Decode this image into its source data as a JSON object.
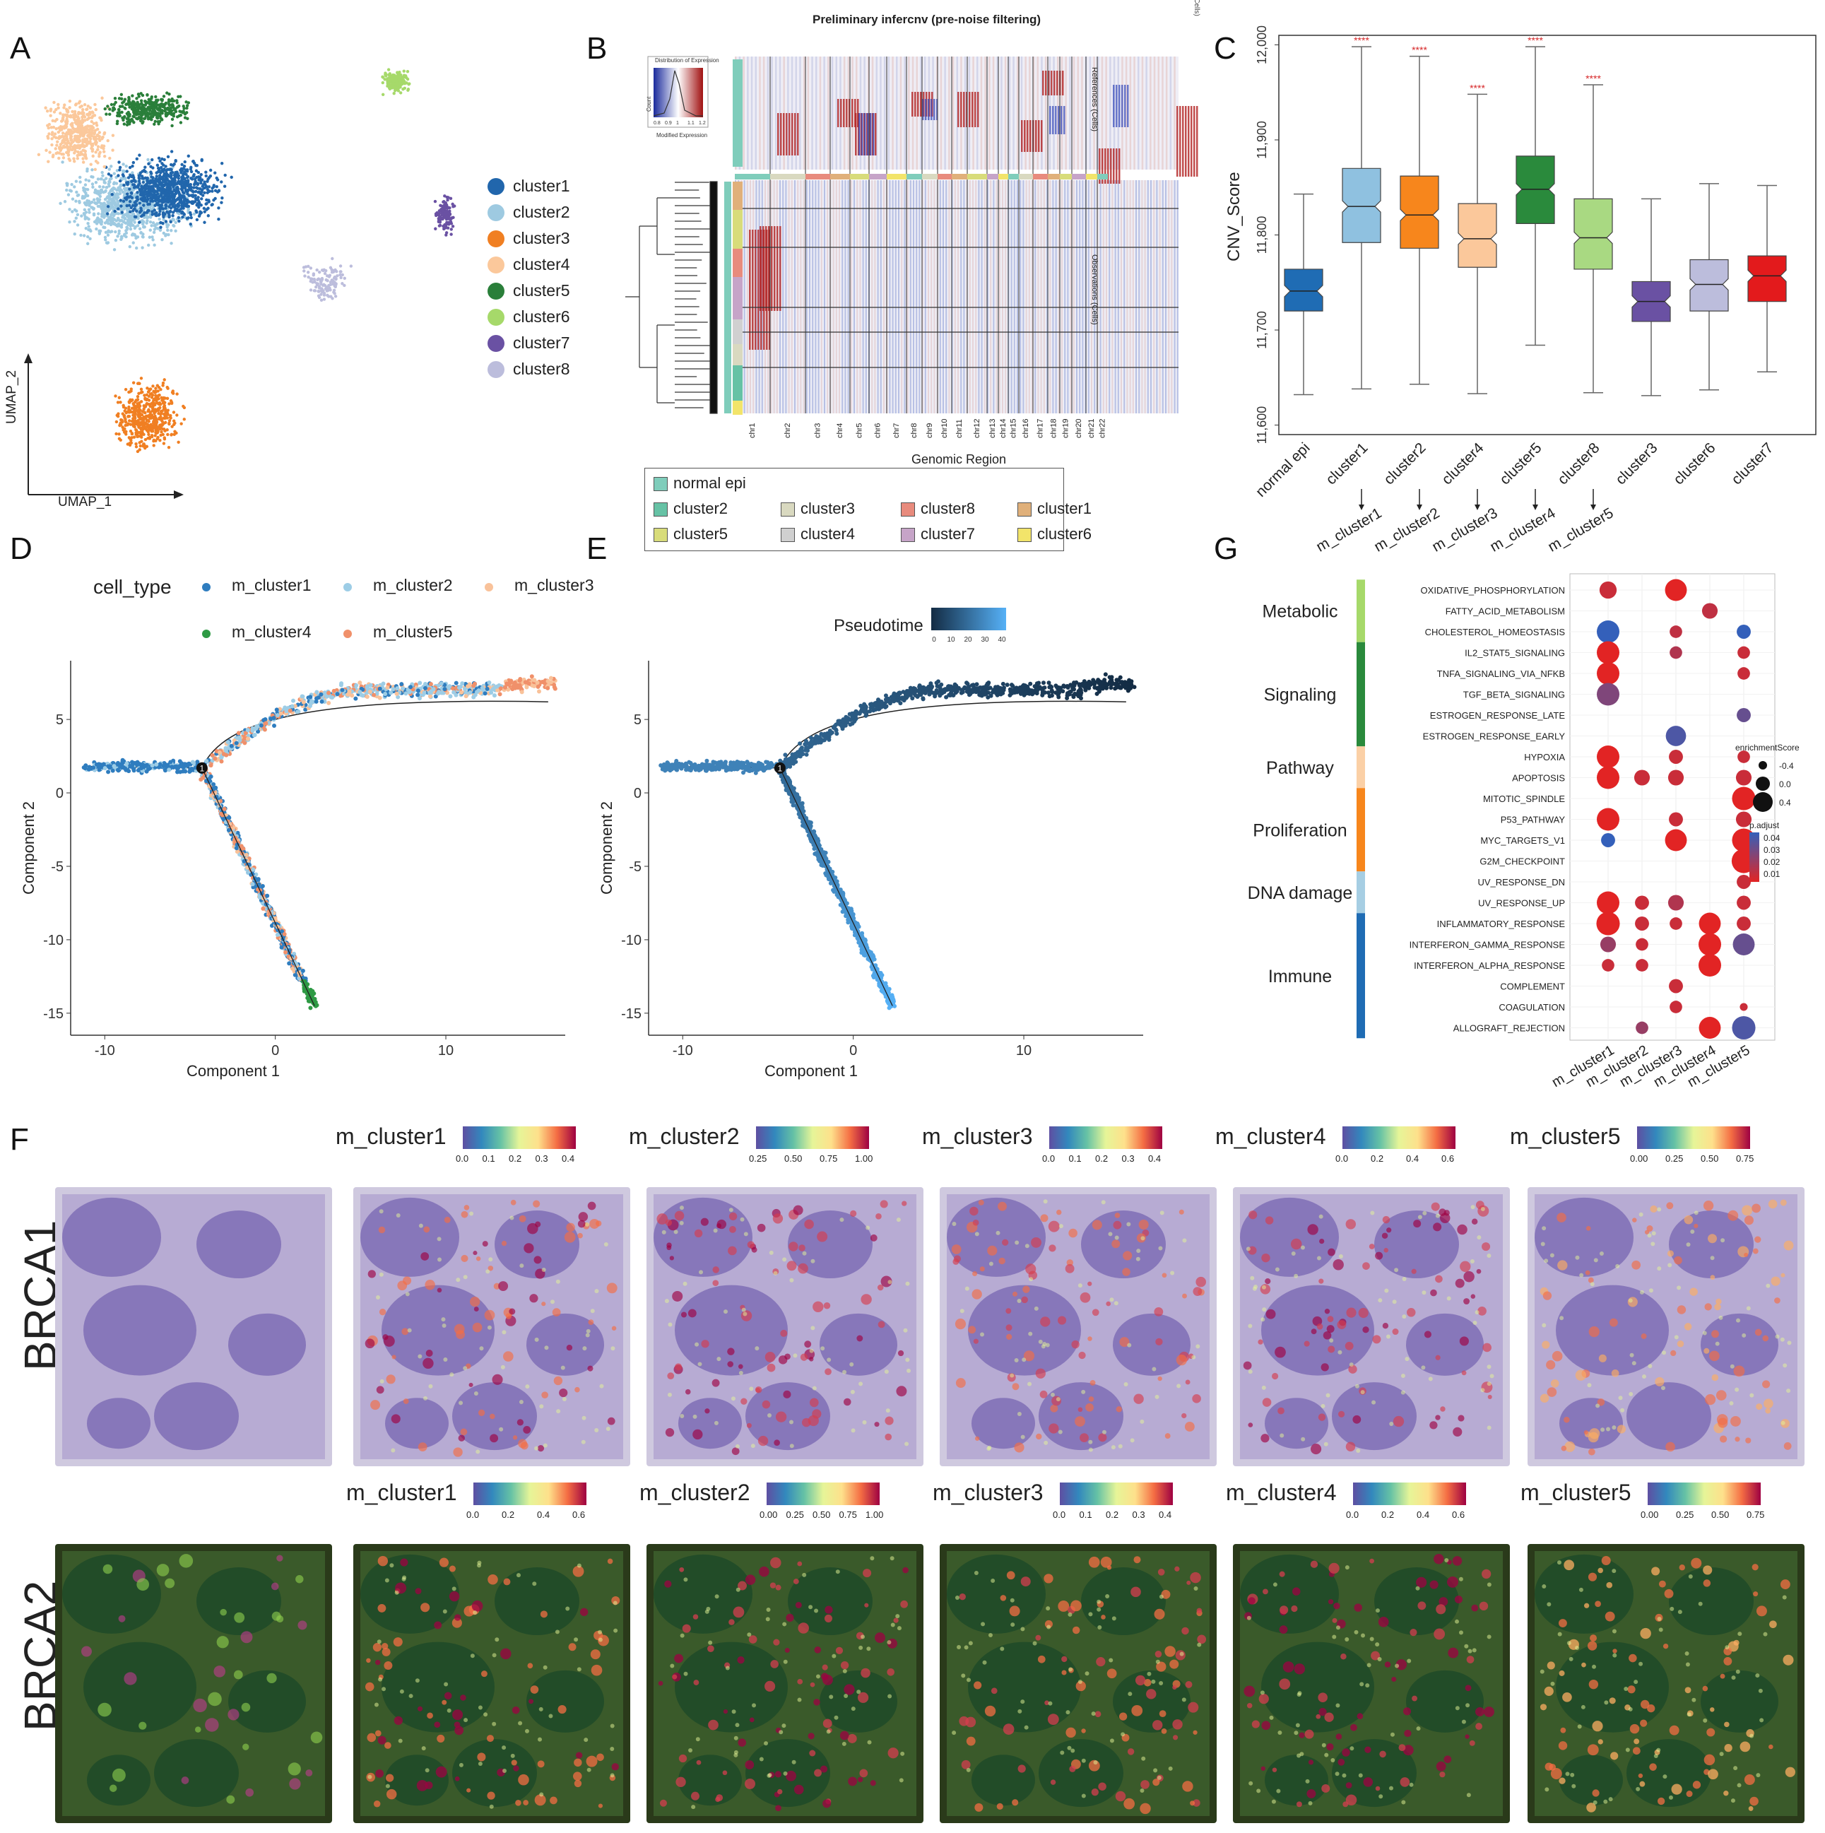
{
  "panel_labels": {
    "A": "A",
    "B": "B",
    "C": "C",
    "D": "D",
    "E": "E",
    "F": "F",
    "G": "G"
  },
  "panelA": {
    "axis_x": "UMAP_1",
    "axis_y": "UMAP_2",
    "legend": [
      {
        "label": "cluster1",
        "color": "#2166ac"
      },
      {
        "label": "cluster2",
        "color": "#9ecae1"
      },
      {
        "label": "cluster3",
        "color": "#f07f22"
      },
      {
        "label": "cluster4",
        "color": "#fbc89b"
      },
      {
        "label": "cluster5",
        "color": "#2a7f3a"
      },
      {
        "label": "cluster6",
        "color": "#a6d96a"
      },
      {
        "label": "cluster7",
        "color": "#6a51a3"
      },
      {
        "label": "cluster8",
        "color": "#bcbddc"
      }
    ]
  },
  "panelB": {
    "title": "Preliminary infercnv (pre-noise filtering)",
    "xlabel": "Genomic Region",
    "ref_label": "References (Cells)",
    "obs_label": "Observations (Cells)",
    "key_title": "Distribution of Expression",
    "key_xlabel": "Modified Expression",
    "key_ylabel": "Count",
    "key_ticks": [
      "0.8",
      "0.9",
      "1",
      "1.1",
      "1.2"
    ],
    "chromosomes": [
      "chr1",
      "chr2",
      "chr3",
      "chr4",
      "chr5",
      "chr6",
      "chr7",
      "chr8",
      "chr9",
      "chr10",
      "chr11",
      "chr12",
      "chr13",
      "chr14",
      "chr15",
      "chr16",
      "chr17",
      "chr18",
      "chr19",
      "chr20",
      "chr21",
      "chr22"
    ],
    "legend": [
      {
        "label": "normal epi",
        "color": "#7fcdbb"
      },
      {
        "label": "cluster2",
        "color": "#66c2a5"
      },
      {
        "label": "cluster3",
        "color": "#d9d9c0"
      },
      {
        "label": "cluster8",
        "color": "#e88b7d"
      },
      {
        "label": "cluster1",
        "color": "#e0b07a"
      },
      {
        "label": "cluster5",
        "color": "#d8dc7a"
      },
      {
        "label": "cluster4",
        "color": "#d0d0d0"
      },
      {
        "label": "cluster7",
        "color": "#c6a4c8"
      },
      {
        "label": "cluster6",
        "color": "#f2e46a"
      }
    ]
  },
  "chart_data": [
    {
      "type": "box",
      "panel": "C",
      "ylabel": "CNV_Score",
      "ylim": [
        11600,
        12000
      ],
      "yticks": [
        "11,600",
        "11,700",
        "11,800",
        "11,900",
        "12,000"
      ],
      "categories": [
        "normal epi",
        "cluster1",
        "cluster2",
        "cluster4",
        "cluster5",
        "cluster8",
        "cluster3",
        "cluster6",
        "cluster7"
      ],
      "mapping": [
        "",
        "m_cluster1",
        "m_cluster2",
        "m_cluster3",
        "m_cluster4",
        "m_cluster5",
        "",
        "",
        ""
      ],
      "colors": [
        "#1f6cb4",
        "#8fc1e0",
        "#f7861c",
        "#fbc89b",
        "#2a8a3c",
        "#a9d982",
        "#6a51a3",
        "#bcbddc",
        "#e31a1c"
      ],
      "significance": [
        "",
        "****",
        "****",
        "****",
        "****",
        "****",
        "",
        "",
        ""
      ],
      "boxes": [
        {
          "min": 11632,
          "q1": 11720,
          "median": 11741,
          "q3": 11764,
          "max": 11843
        },
        {
          "min": 11638,
          "q1": 11792,
          "median": 11830,
          "q3": 11870,
          "max": 11998
        },
        {
          "min": 11643,
          "q1": 11786,
          "median": 11821,
          "q3": 11862,
          "max": 11988
        },
        {
          "min": 11633,
          "q1": 11766,
          "median": 11796,
          "q3": 11833,
          "max": 11948
        },
        {
          "min": 11684,
          "q1": 11812,
          "median": 11848,
          "q3": 11883,
          "max": 11998
        },
        {
          "min": 11634,
          "q1": 11764,
          "median": 11797,
          "q3": 11838,
          "max": 11958
        },
        {
          "min": 11631,
          "q1": 11709,
          "median": 11730,
          "q3": 11751,
          "max": 11838
        },
        {
          "min": 11637,
          "q1": 11720,
          "median": 11748,
          "q3": 11774,
          "max": 11854
        },
        {
          "min": 11656,
          "q1": 11730,
          "median": 11757,
          "q3": 11778,
          "max": 11852
        }
      ]
    },
    {
      "type": "scatter",
      "panel": "D",
      "legend_title": "cell_type",
      "xlabel": "Component 1",
      "ylabel": "Component 2",
      "xticks": [
        -10,
        0,
        10
      ],
      "yticks": [
        5,
        0,
        -5,
        -10,
        -15
      ],
      "xlim": [
        -12,
        17
      ],
      "ylim": [
        -16.5,
        9
      ],
      "series": [
        {
          "name": "m_cluster1",
          "color": "#2f7dbf"
        },
        {
          "name": "m_cluster2",
          "color": "#9dcde6"
        },
        {
          "name": "m_cluster3",
          "color": "#f9c29a"
        },
        {
          "name": "m_cluster4",
          "color": "#2e9a44"
        },
        {
          "name": "m_cluster5",
          "color": "#f0906a"
        }
      ],
      "branch_point": [
        -4.3,
        1.7
      ]
    },
    {
      "type": "scatter",
      "panel": "E",
      "legend_title": "Pseudotime",
      "xlabel": "Component 1",
      "ylabel": "Component 2",
      "xticks": [
        -10,
        0,
        10
      ],
      "yticks": [
        5,
        0,
        -5,
        -10,
        -15
      ],
      "colorbar_ticks": [
        "0",
        "10",
        "20",
        "30",
        "40"
      ],
      "xlim": [
        -12,
        17
      ],
      "ylim": [
        -16.5,
        9
      ]
    },
    {
      "type": "dot",
      "panel": "G",
      "categories": [
        "m_cluster1",
        "m_cluster2",
        "m_cluster3",
        "m_cluster4",
        "m_cluster5"
      ],
      "pathways": [
        "OXIDATIVE_PHOSPHORYLATION",
        "FATTY_ACID_METABOLISM",
        "CHOLESTEROL_HOMEOSTASIS",
        "IL2_STAT5_SIGNALING",
        "TNFA_SIGNALING_VIA_NFKB",
        "TGF_BETA_SIGNALING",
        "ESTROGEN_RESPONSE_LATE",
        "ESTROGEN_RESPONSE_EARLY",
        "HYPOXIA",
        "APOPTOSIS",
        "MITOTIC_SPINDLE",
        "P53_PATHWAY",
        "MYC_TARGETS_V1",
        "G2M_CHECKPOINT",
        "UV_RESPONSE_DN",
        "UV_RESPONSE_UP",
        "INFLAMMATORY_RESPONSE",
        "INTERFERON_GAMMA_RESPONSE",
        "INTERFERON_ALPHA_RESPONSE",
        "COMPLEMENT",
        "COAGULATION",
        "ALLOGRAFT_REJECTION"
      ],
      "groups": [
        {
          "label": "Metabolic",
          "color": "#a6d96a",
          "from": 0,
          "to": 2
        },
        {
          "label": "Signaling",
          "color": "#2a8a3c",
          "from": 3,
          "to": 7
        },
        {
          "label": "Pathway",
          "color": "#fbd0a6",
          "from": 8,
          "to": 9
        },
        {
          "label": "Proliferation",
          "color": "#f7861c",
          "from": 10,
          "to": 13
        },
        {
          "label": "DNA damage",
          "color": "#a6cee3",
          "from": 14,
          "to": 15
        },
        {
          "label": "Immune",
          "color": "#1f6cb4",
          "from": 16,
          "to": 21
        }
      ],
      "size_legend_title": "enrichmentScore",
      "size_legend": [
        "-0.4",
        "0.0",
        "0.4"
      ],
      "color_legend_title": "p.adjust",
      "color_legend": [
        "0.04",
        "0.03",
        "0.02",
        "0.01"
      ],
      "dots": [
        {
          "row": 0,
          "col": 0,
          "score": 0.1,
          "p": 0.01
        },
        {
          "row": 0,
          "col": 2,
          "score": 0.4,
          "p": 0.005
        },
        {
          "row": 1,
          "col": 3,
          "score": 0.0,
          "p": 0.012
        },
        {
          "row": 2,
          "col": 0,
          "score": 0.45,
          "p": 0.04
        },
        {
          "row": 2,
          "col": 2,
          "score": -0.2,
          "p": 0.012
        },
        {
          "row": 2,
          "col": 4,
          "score": -0.1,
          "p": 0.04
        },
        {
          "row": 3,
          "col": 0,
          "score": 0.45,
          "p": 0.005
        },
        {
          "row": 3,
          "col": 2,
          "score": -0.2,
          "p": 0.015
        },
        {
          "row": 3,
          "col": 4,
          "score": -0.2,
          "p": 0.01
        },
        {
          "row": 4,
          "col": 0,
          "score": 0.45,
          "p": 0.005
        },
        {
          "row": 4,
          "col": 4,
          "score": -0.2,
          "p": 0.01
        },
        {
          "row": 5,
          "col": 0,
          "score": 0.45,
          "p": 0.025
        },
        {
          "row": 6,
          "col": 4,
          "score": -0.1,
          "p": 0.03
        },
        {
          "row": 7,
          "col": 2,
          "score": 0.3,
          "p": 0.035
        },
        {
          "row": 8,
          "col": 0,
          "score": 0.45,
          "p": 0.005
        },
        {
          "row": 8,
          "col": 2,
          "score": -0.1,
          "p": 0.01
        },
        {
          "row": 8,
          "col": 4,
          "score": -0.2,
          "p": 0.01
        },
        {
          "row": 9,
          "col": 0,
          "score": 0.45,
          "p": 0.005
        },
        {
          "row": 9,
          "col": 1,
          "score": 0.0,
          "p": 0.01
        },
        {
          "row": 9,
          "col": 2,
          "score": 0.0,
          "p": 0.01
        },
        {
          "row": 9,
          "col": 4,
          "score": 0.0,
          "p": 0.01
        },
        {
          "row": 10,
          "col": 4,
          "score": 0.5,
          "p": 0.005
        },
        {
          "row": 11,
          "col": 0,
          "score": 0.45,
          "p": 0.005
        },
        {
          "row": 11,
          "col": 2,
          "score": -0.1,
          "p": 0.01
        },
        {
          "row": 11,
          "col": 4,
          "score": 0.0,
          "p": 0.01
        },
        {
          "row": 12,
          "col": 0,
          "score": -0.1,
          "p": 0.04
        },
        {
          "row": 12,
          "col": 2,
          "score": 0.4,
          "p": 0.005
        },
        {
          "row": 12,
          "col": 4,
          "score": 0.5,
          "p": 0.005
        },
        {
          "row": 13,
          "col": 4,
          "score": 0.55,
          "p": 0.005
        },
        {
          "row": 14,
          "col": 4,
          "score": -0.1,
          "p": 0.01
        },
        {
          "row": 15,
          "col": 0,
          "score": 0.45,
          "p": 0.005
        },
        {
          "row": 15,
          "col": 1,
          "score": -0.1,
          "p": 0.01
        },
        {
          "row": 15,
          "col": 2,
          "score": 0.0,
          "p": 0.015
        },
        {
          "row": 15,
          "col": 4,
          "score": -0.1,
          "p": 0.01
        },
        {
          "row": 16,
          "col": 0,
          "score": 0.5,
          "p": 0.005
        },
        {
          "row": 16,
          "col": 1,
          "score": -0.1,
          "p": 0.01
        },
        {
          "row": 16,
          "col": 2,
          "score": -0.2,
          "p": 0.01
        },
        {
          "row": 16,
          "col": 3,
          "score": 0.4,
          "p": 0.005
        },
        {
          "row": 16,
          "col": 4,
          "score": -0.1,
          "p": 0.01
        },
        {
          "row": 17,
          "col": 0,
          "score": 0.0,
          "p": 0.02
        },
        {
          "row": 17,
          "col": 1,
          "score": -0.2,
          "p": 0.01
        },
        {
          "row": 17,
          "col": 3,
          "score": 0.45,
          "p": 0.005
        },
        {
          "row": 17,
          "col": 4,
          "score": 0.4,
          "p": 0.03
        },
        {
          "row": 18,
          "col": 0,
          "score": -0.2,
          "p": 0.01
        },
        {
          "row": 18,
          "col": 1,
          "score": -0.2,
          "p": 0.01
        },
        {
          "row": 18,
          "col": 3,
          "score": 0.45,
          "p": 0.005
        },
        {
          "row": 19,
          "col": 2,
          "score": -0.1,
          "p": 0.01
        },
        {
          "row": 20,
          "col": 2,
          "score": -0.2,
          "p": 0.01
        },
        {
          "row": 20,
          "col": 4,
          "score": -0.5,
          "p": 0.01
        },
        {
          "row": 21,
          "col": 1,
          "score": -0.2,
          "p": 0.02
        },
        {
          "row": 21,
          "col": 3,
          "score": 0.4,
          "p": 0.005
        },
        {
          "row": 21,
          "col": 4,
          "score": 0.5,
          "p": 0.035
        }
      ]
    }
  ],
  "panelF": {
    "row1_label": "BRCA1",
    "row2_label": "BRCA2",
    "row1_cbars": [
      {
        "title": "m_cluster1",
        "ticks": [
          "0.0",
          "0.1",
          "0.2",
          "0.3",
          "0.4"
        ]
      },
      {
        "title": "m_cluster2",
        "ticks": [
          "0.25",
          "0.50",
          "0.75",
          "1.00"
        ]
      },
      {
        "title": "m_cluster3",
        "ticks": [
          "0.0",
          "0.1",
          "0.2",
          "0.3",
          "0.4"
        ]
      },
      {
        "title": "m_cluster4",
        "ticks": [
          "0.0",
          "0.2",
          "0.4",
          "0.6"
        ]
      },
      {
        "title": "m_cluster5",
        "ticks": [
          "0.00",
          "0.25",
          "0.50",
          "0.75"
        ]
      }
    ],
    "row2_cbars": [
      {
        "title": "m_cluster1",
        "ticks": [
          "0.0",
          "0.2",
          "0.4",
          "0.6"
        ]
      },
      {
        "title": "m_cluster2",
        "ticks": [
          "0.00",
          "0.25",
          "0.50",
          "0.75",
          "1.00"
        ]
      },
      {
        "title": "m_cluster3",
        "ticks": [
          "0.0",
          "0.1",
          "0.2",
          "0.3",
          "0.4"
        ]
      },
      {
        "title": "m_cluster4",
        "ticks": [
          "0.0",
          "0.2",
          "0.4",
          "0.6"
        ]
      },
      {
        "title": "m_cluster5",
        "ticks": [
          "0.00",
          "0.25",
          "0.50",
          "0.75"
        ]
      }
    ]
  }
}
